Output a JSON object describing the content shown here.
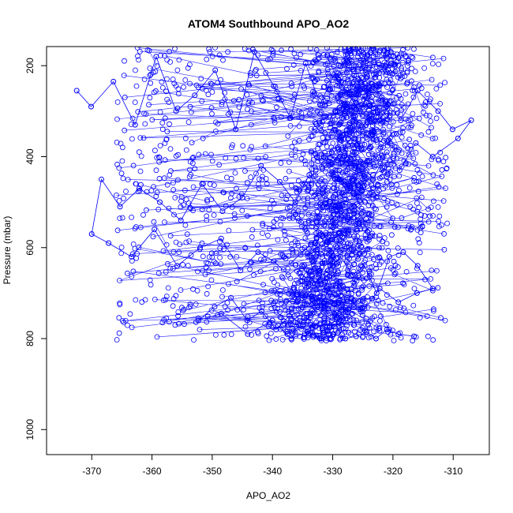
{
  "chart_data": {
    "type": "scatter",
    "title": "ATOM4 Southbound APO_AO2",
    "xlabel": "APO_AO2",
    "ylabel": "Pressure (mbar)",
    "xlim": [
      -377.5,
      -304
    ],
    "ylim": [
      1055,
      158
    ],
    "y_axis_reversed": true,
    "x_ticks": [
      -370,
      -360,
      -350,
      -340,
      -330,
      -320,
      -310
    ],
    "y_ticks": [
      200,
      400,
      600,
      800,
      1000
    ],
    "grid": false,
    "legend": "none",
    "marker": "open-circle",
    "connected_lines": true,
    "series": [
      {
        "color": "#0000ff",
        "x": [
          -372.5,
          -370.1,
          -366.4,
          -362.8,
          -359.3,
          -356.0,
          -352.9,
          -349.5,
          -346.1,
          -343.0,
          -339.8,
          -337.0,
          -334.5,
          -332.1,
          -329.8,
          -327.6,
          -325.5,
          -323.4,
          -321.2,
          -318.7,
          -315.9,
          -312.5,
          -310.1,
          -307.0,
          -309.2,
          -313.4,
          -316.2,
          -318.9,
          -321.0,
          -323.3,
          -325.4,
          -327.5,
          -329.6,
          -331.7,
          -333.9,
          -336.2,
          -338.8,
          -341.9,
          -345.0,
          -348.3,
          -351.7,
          -355.2,
          -358.7,
          -362.1,
          -365.3,
          -368.4,
          -370.0,
          -367.2,
          -363.4,
          -359.6,
          -355.8,
          -352.0,
          -348.5,
          -345.3,
          -342.4,
          -339.8,
          -337.4,
          -335.1,
          -332.9,
          -330.8,
          -328.7,
          -326.7,
          -324.7,
          -322.7,
          -320.6,
          -318.3,
          -315.9,
          -313.4,
          -316.0,
          -319.1,
          -322.2,
          -325.0,
          -327.6,
          -330.1,
          -332.5,
          -334.9,
          -337.2,
          -339.4,
          -341.8,
          -344.2,
          -346.9,
          -349.6,
          -352.3,
          -348.5,
          -344.1,
          -340.0,
          -336.9,
          -334.2,
          -331.9,
          -329.8,
          -327.9,
          -326.1,
          -324.4,
          -322.8,
          -321.0,
          -319.1,
          -316.5
        ],
        "y": [
          255,
          290,
          235,
          330,
          180,
          300,
          265,
          210,
          340,
          170,
          245,
          315,
          195,
          285,
          220,
          260,
          300,
          240,
          280,
          320,
          255,
          300,
          340,
          320,
          360,
          400,
          370,
          430,
          390,
          450,
          410,
          470,
          430,
          480,
          440,
          500,
          455,
          420,
          490,
          520,
          460,
          540,
          500,
          470,
          510,
          450,
          570,
          590,
          620,
          560,
          640,
          600,
          580,
          650,
          610,
          630,
          660,
          640,
          680,
          650,
          620,
          660,
          640,
          700,
          620,
          610,
          640,
          690,
          700,
          720,
          690,
          740,
          710,
          760,
          730,
          770,
          750,
          780,
          740,
          760,
          710,
          730,
          760,
          745,
          790,
          760,
          800,
          785,
          800,
          790,
          800,
          795,
          785,
          800,
          780,
          790,
          795
        ]
      }
    ]
  }
}
